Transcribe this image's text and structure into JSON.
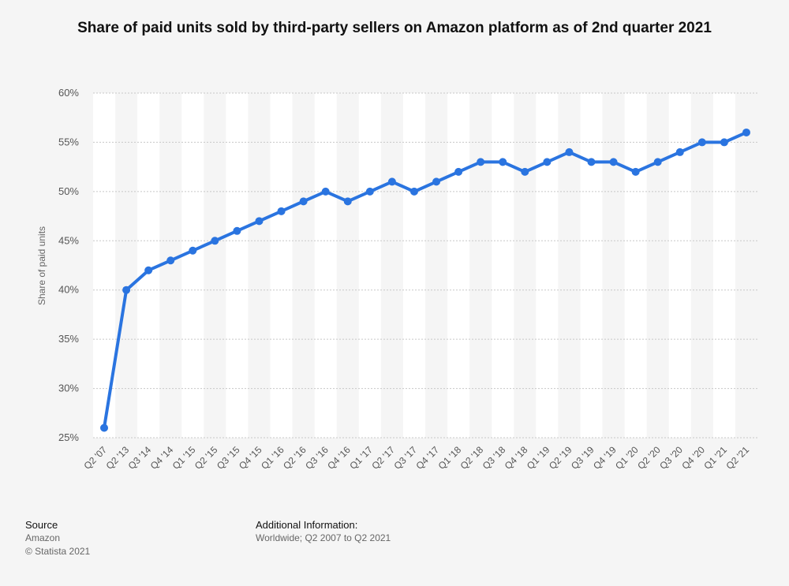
{
  "chart_data": {
    "type": "line",
    "title": "Share of paid units sold by third-party sellers on Amazon platform as of 2nd quarter 2021",
    "ylabel": "Share of paid units",
    "xlabel": "",
    "ylim": [
      25,
      60
    ],
    "yticks": [
      "25%",
      "30%",
      "35%",
      "40%",
      "45%",
      "50%",
      "55%",
      "60%"
    ],
    "ytick_values": [
      25,
      30,
      35,
      40,
      45,
      50,
      55,
      60
    ],
    "grid": true,
    "line_color": "#2a74e0",
    "categories": [
      "Q2 '07",
      "Q2 '13",
      "Q3 '14",
      "Q4 '14",
      "Q1 '15",
      "Q2 '15",
      "Q3 '15",
      "Q4 '15",
      "Q1 '16",
      "Q2 '16",
      "Q3 '16",
      "Q4 '16",
      "Q1 '17",
      "Q2 '17",
      "Q3 '17",
      "Q4 '17",
      "Q1 '18",
      "Q2 '18",
      "Q3 '18",
      "Q4 '18",
      "Q1 '19",
      "Q2 '19",
      "Q3 '19",
      "Q4 '19",
      "Q1 '20",
      "Q2 '20",
      "Q3 '20",
      "Q4 '20",
      "Q1 '21",
      "Q2 '21"
    ],
    "values": [
      26,
      40,
      42,
      43,
      44,
      45,
      46,
      47,
      48,
      49,
      50,
      49,
      50,
      51,
      50,
      51,
      52,
      53,
      53,
      52,
      53,
      54,
      53,
      53,
      52,
      53,
      54,
      55,
      55,
      56
    ]
  },
  "footer": {
    "source_label": "Source",
    "source_value": "Amazon",
    "copyright": "© Statista 2021",
    "info_label": "Additional Information:",
    "info_value": "Worldwide; Q2 2007 to Q2 2021"
  }
}
